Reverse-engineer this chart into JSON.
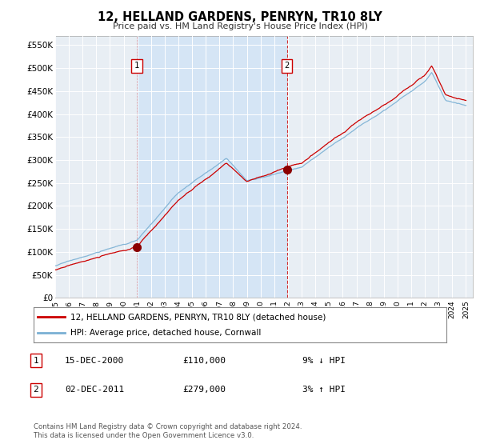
{
  "title": "12, HELLAND GARDENS, PENRYN, TR10 8LY",
  "subtitle": "Price paid vs. HM Land Registry's House Price Index (HPI)",
  "background_color": "#ffffff",
  "plot_bg_color": "#dce8f5",
  "plot_bg_color_outside": "#e8e8e8",
  "grid_color": "#ffffff",
  "ylim": [
    0,
    570000
  ],
  "yticks": [
    0,
    50000,
    100000,
    150000,
    200000,
    250000,
    300000,
    350000,
    400000,
    450000,
    500000,
    550000
  ],
  "ytick_labels": [
    "£0",
    "£50K",
    "£100K",
    "£150K",
    "£200K",
    "£250K",
    "£300K",
    "£350K",
    "£400K",
    "£450K",
    "£500K",
    "£550K"
  ],
  "sale1_date": 2000.958,
  "sale1_price": 110000,
  "sale1_label": "1",
  "sale2_date": 2011.917,
  "sale2_price": 279000,
  "sale2_label": "2",
  "sale_marker_color": "#8b0000",
  "sale_line_color": "#cc0000",
  "hpi_line_color": "#7ab0d4",
  "legend_sale_label": "12, HELLAND GARDENS, PENRYN, TR10 8LY (detached house)",
  "legend_hpi_label": "HPI: Average price, detached house, Cornwall",
  "annotation1_date": "15-DEC-2000",
  "annotation1_price": "£110,000",
  "annotation1_note": "9% ↓ HPI",
  "annotation2_date": "02-DEC-2011",
  "annotation2_price": "£279,000",
  "annotation2_note": "3% ↑ HPI",
  "footer": "Contains HM Land Registry data © Crown copyright and database right 2024.\nThis data is licensed under the Open Government Licence v3.0."
}
